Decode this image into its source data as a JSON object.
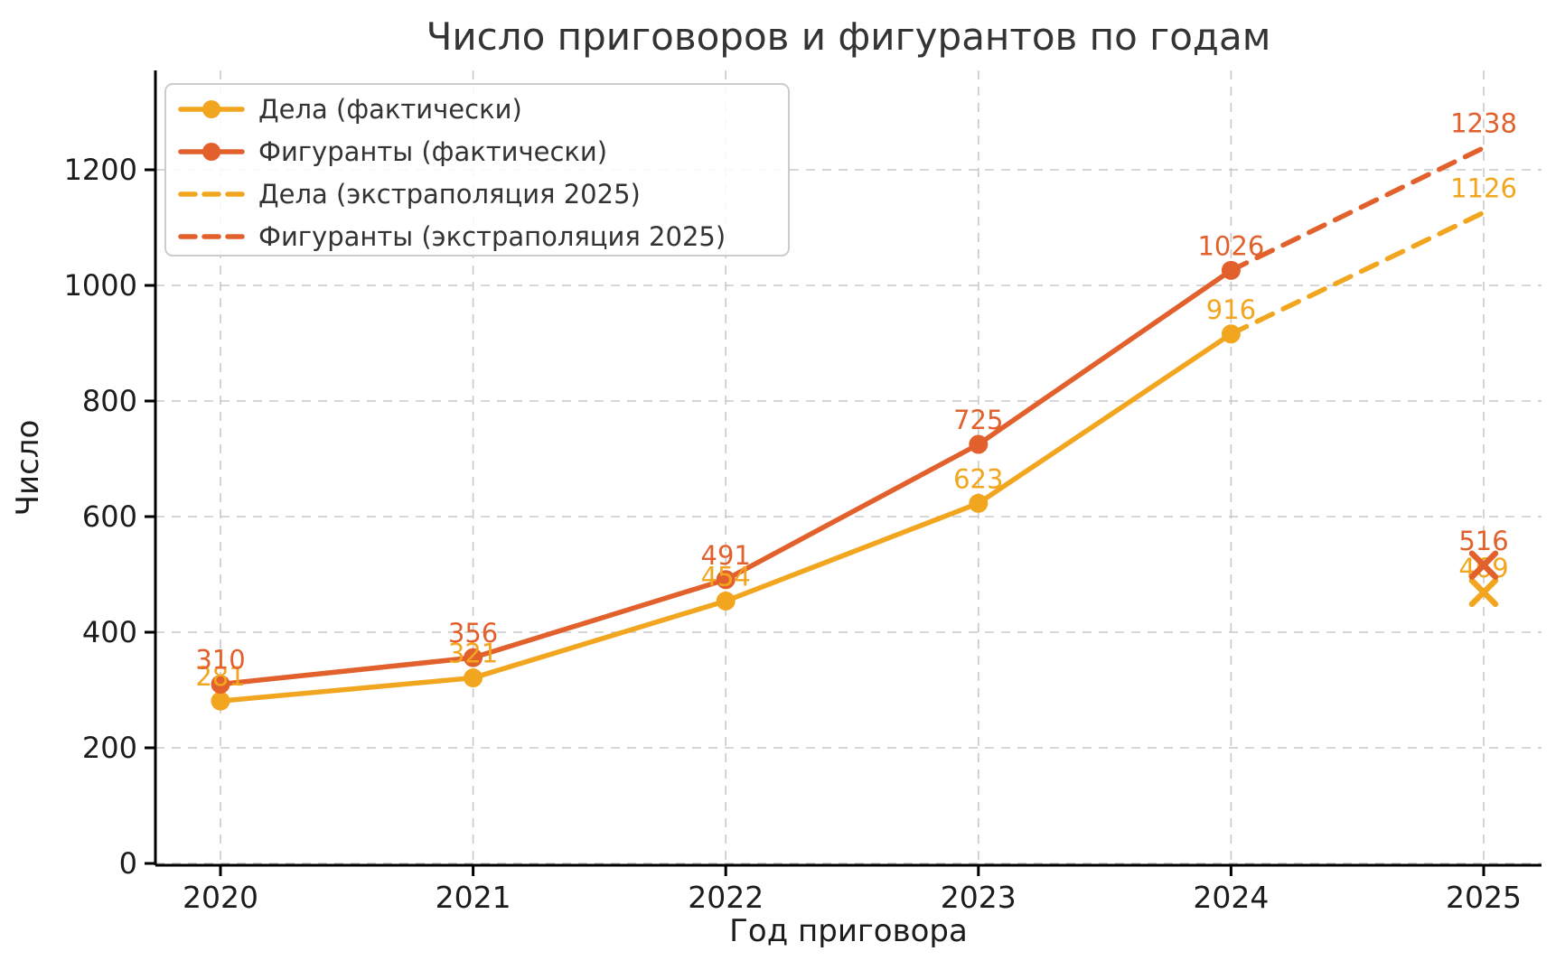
{
  "chart_data": {
    "type": "line",
    "title": "Число приговоров и фигурантов по годам",
    "xlabel": "Год приговора",
    "ylabel": "Число",
    "xticks": [
      2020,
      2021,
      2022,
      2023,
      2024,
      2025
    ],
    "yticks": [
      0,
      200,
      400,
      600,
      800,
      1000,
      1200
    ],
    "ylim": [
      0,
      1372
    ],
    "grid": true,
    "grid_style": "dashed",
    "legend_position": "upper-left",
    "colors": {
      "cases": "#F2A61F",
      "figurants": "#E2602C",
      "grid": "#c9c9c9",
      "spine": "#000000",
      "title_text": "#343434",
      "tick_text": "#1c1c1c",
      "legend_text": "#333333",
      "legend_border": "#cccccc"
    },
    "series": [
      {
        "id": "cases-actual",
        "name": "Дела (фактически)",
        "style": "solid",
        "marker": "circle",
        "color_key": "cases",
        "x": [
          2020,
          2021,
          2022,
          2023,
          2024
        ],
        "values": [
          281,
          321,
          454,
          623,
          916
        ],
        "label_points": "all"
      },
      {
        "id": "figurants-actual",
        "name": "Фигуранты (фактически)",
        "style": "solid",
        "marker": "circle",
        "color_key": "figurants",
        "x": [
          2020,
          2021,
          2022,
          2023,
          2024
        ],
        "values": [
          310,
          356,
          491,
          725,
          1026
        ],
        "label_points": "all"
      },
      {
        "id": "cases-extrapolation",
        "name": "Дела (экстраполяция 2025)",
        "style": "dashed",
        "marker": "none",
        "color_key": "cases",
        "x": [
          2024,
          2025
        ],
        "values": [
          916,
          1126
        ],
        "label_points": "last"
      },
      {
        "id": "figurants-extrapolation",
        "name": "Фигуранты (экстраполяция 2025)",
        "style": "dashed",
        "marker": "none",
        "color_key": "figurants",
        "x": [
          2024,
          2025
        ],
        "values": [
          1026,
          1238
        ],
        "label_points": "last"
      }
    ],
    "scatter_points": [
      {
        "id": "cases-2025-partial",
        "color_key": "cases",
        "marker": "x",
        "x": 2025,
        "value": 469
      },
      {
        "id": "figurants-2025-partial",
        "color_key": "figurants",
        "marker": "x",
        "x": 2025,
        "value": 516
      }
    ]
  }
}
